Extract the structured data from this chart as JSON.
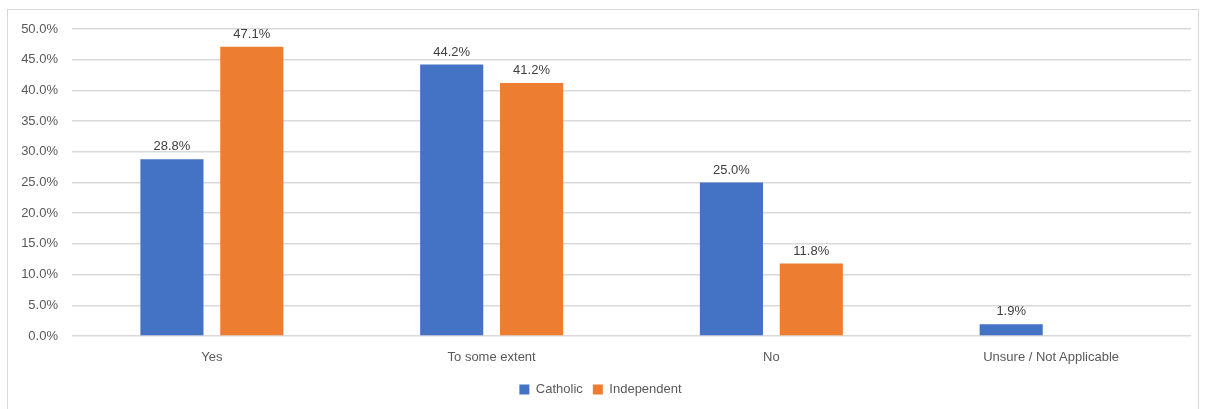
{
  "chart_data": {
    "type": "bar",
    "categories": [
      "Yes",
      "To some extent",
      "No",
      "Unsure / Not Applicable"
    ],
    "series": [
      {
        "name": "Catholic",
        "color": "#4472c4",
        "values": [
          28.8,
          44.2,
          25.0,
          1.9
        ],
        "value_labels": [
          "28.8%",
          "44.2%",
          "25.0%",
          "1.9%"
        ]
      },
      {
        "name": "Independent",
        "color": "#ed7d31",
        "values": [
          47.1,
          41.2,
          11.8,
          null
        ],
        "value_labels": [
          "47.1%",
          "41.2%",
          "11.8%",
          null
        ]
      }
    ],
    "ylim": [
      0,
      50
    ],
    "yticks": [
      {
        "value": 0,
        "label": "0.0%"
      },
      {
        "value": 5,
        "label": "5.0%"
      },
      {
        "value": 10,
        "label": "10.0%"
      },
      {
        "value": 15,
        "label": "15.0%"
      },
      {
        "value": 20,
        "label": "20.0%"
      },
      {
        "value": 25,
        "label": "25.0%"
      },
      {
        "value": 30,
        "label": "30.0%"
      },
      {
        "value": 35,
        "label": "35.0%"
      },
      {
        "value": 40,
        "label": "40.0%"
      },
      {
        "value": 45,
        "label": "45.0%"
      },
      {
        "value": 50,
        "label": "50.0%"
      }
    ],
    "grid": "y",
    "legend": "bottom"
  }
}
